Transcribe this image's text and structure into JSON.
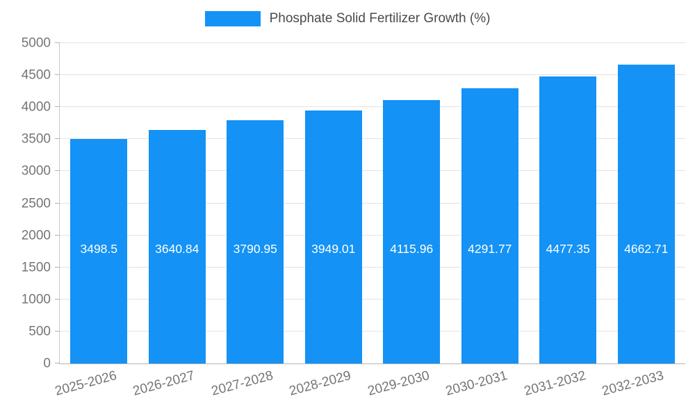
{
  "chart_data": {
    "type": "bar",
    "title": "Phosphate Solid Fertilizer Growth (%)",
    "categories": [
      "2025-2026",
      "2026-2027",
      "2027-2028",
      "2028-2029",
      "2029-2030",
      "2030-2031",
      "2031-2032",
      "2032-2033"
    ],
    "values": [
      3498.5,
      3640.84,
      3790.95,
      3949.01,
      4115.96,
      4291.77,
      4477.35,
      4662.71
    ],
    "value_labels": [
      "3498.5",
      "3640.84",
      "3790.95",
      "3949.01",
      "4115.96",
      "4291.77",
      "4477.35",
      "4662.71"
    ],
    "xlabel": "",
    "ylabel": "",
    "ylim": [
      0,
      5000
    ],
    "ytick_step": 500,
    "grid": true,
    "legend_position": "top",
    "colors": {
      "bar": "#1492f5",
      "value_label": "#ffffff",
      "axis_label": "#757575",
      "title": "#4a4a4a",
      "gridline": "#e3e3e3",
      "background": "#ffffff"
    }
  }
}
